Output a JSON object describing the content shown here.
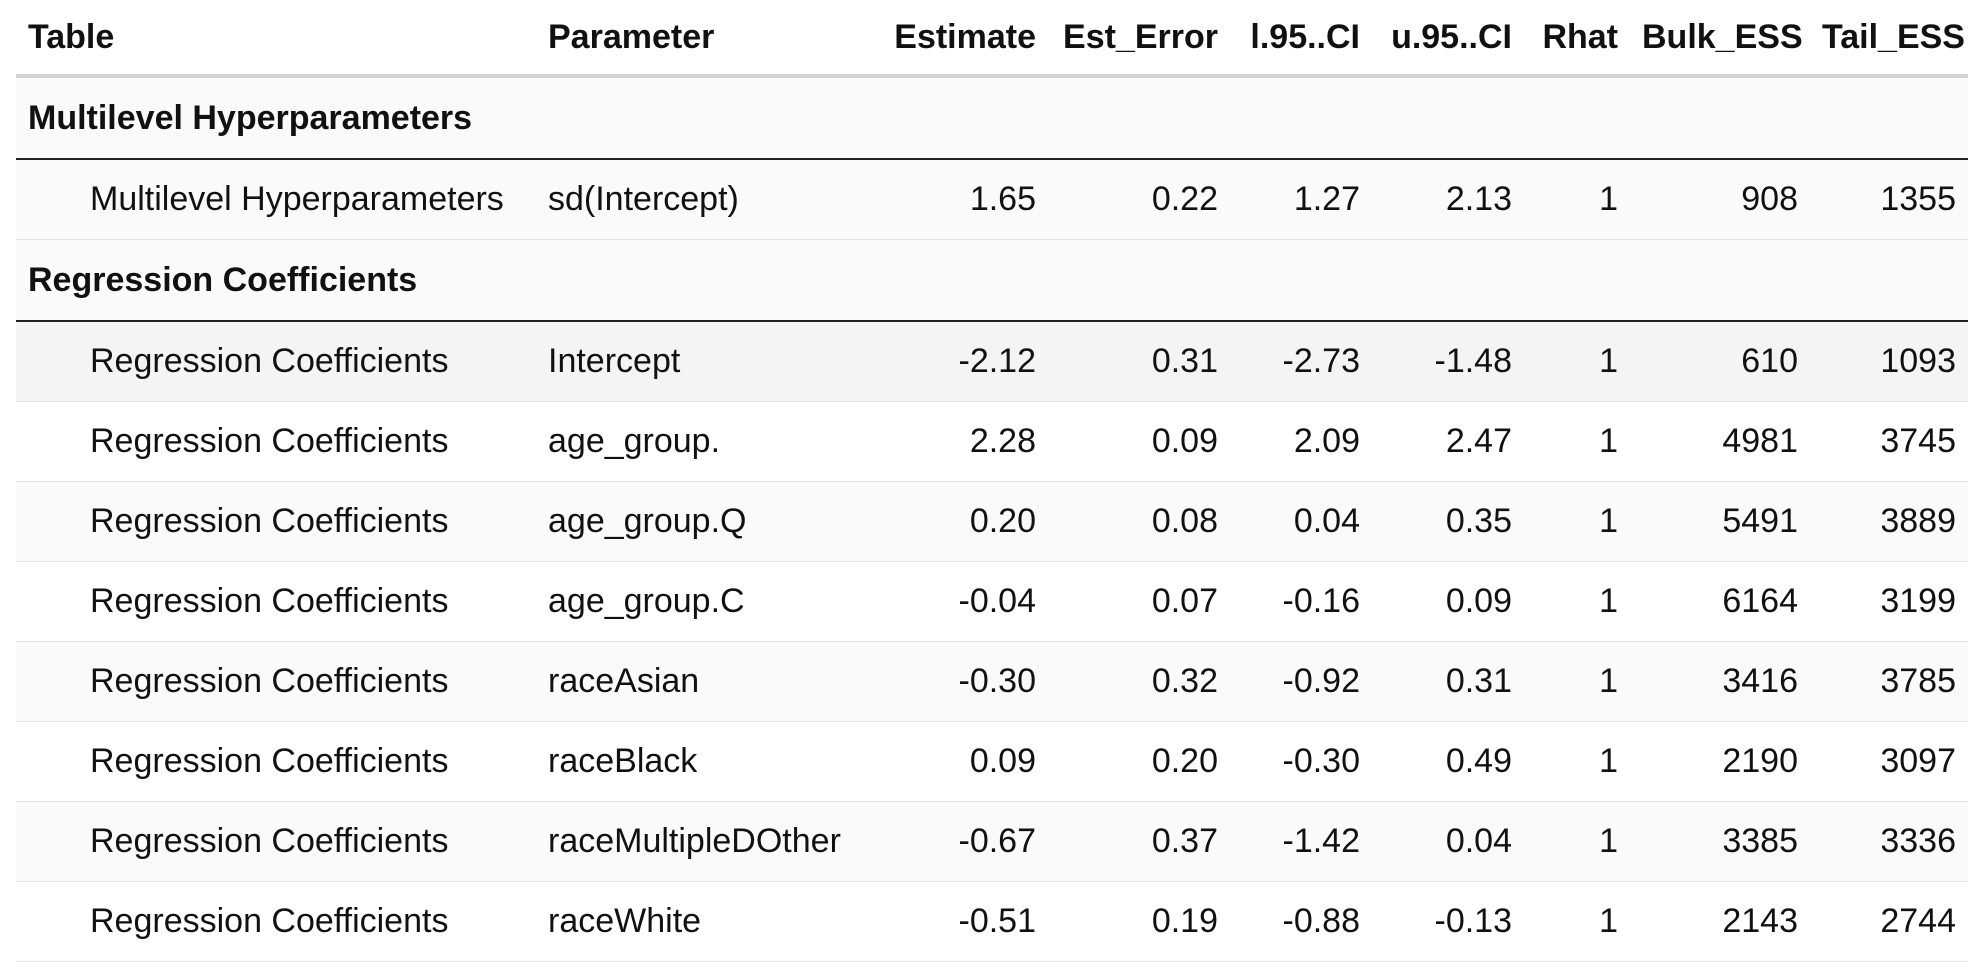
{
  "columns": [
    "Table",
    "Parameter",
    "Estimate",
    "Est_Error",
    "l.95..CI",
    "u.95..CI",
    "Rhat",
    "Bulk_ESS",
    "Tail_ESS"
  ],
  "groups": [
    {
      "label": "Multilevel Hyperparameters",
      "rows": [
        [
          "Multilevel Hyperparameters",
          "sd(Intercept)",
          "1.65",
          "0.22",
          "1.27",
          "2.13",
          "1",
          "908",
          "1355"
        ]
      ]
    },
    {
      "label": "Regression Coefficients",
      "rows": [
        [
          "Regression Coefficients",
          "Intercept",
          "-2.12",
          "0.31",
          "-2.73",
          "-1.48",
          "1",
          "610",
          "1093"
        ],
        [
          "Regression Coefficients",
          "age_group.",
          "2.28",
          "0.09",
          "2.09",
          "2.47",
          "1",
          "4981",
          "3745"
        ],
        [
          "Regression Coefficients",
          "age_group.Q",
          "0.20",
          "0.08",
          "0.04",
          "0.35",
          "1",
          "5491",
          "3889"
        ],
        [
          "Regression Coefficients",
          "age_group.C",
          "-0.04",
          "0.07",
          "-0.16",
          "0.09",
          "1",
          "6164",
          "3199"
        ],
        [
          "Regression Coefficients",
          "raceAsian",
          "-0.30",
          "0.32",
          "-0.92",
          "0.31",
          "1",
          "3416",
          "3785"
        ],
        [
          "Regression Coefficients",
          "raceBlack",
          "0.09",
          "0.20",
          "-0.30",
          "0.49",
          "1",
          "2190",
          "3097"
        ],
        [
          "Regression Coefficients",
          "raceMultipleDOther",
          "-0.67",
          "0.37",
          "-1.42",
          "0.04",
          "1",
          "3385",
          "3336"
        ],
        [
          "Regression Coefficients",
          "raceWhite",
          "-0.51",
          "0.19",
          "-0.88",
          "-0.13",
          "1",
          "2143",
          "2744"
        ]
      ]
    }
  ]
}
